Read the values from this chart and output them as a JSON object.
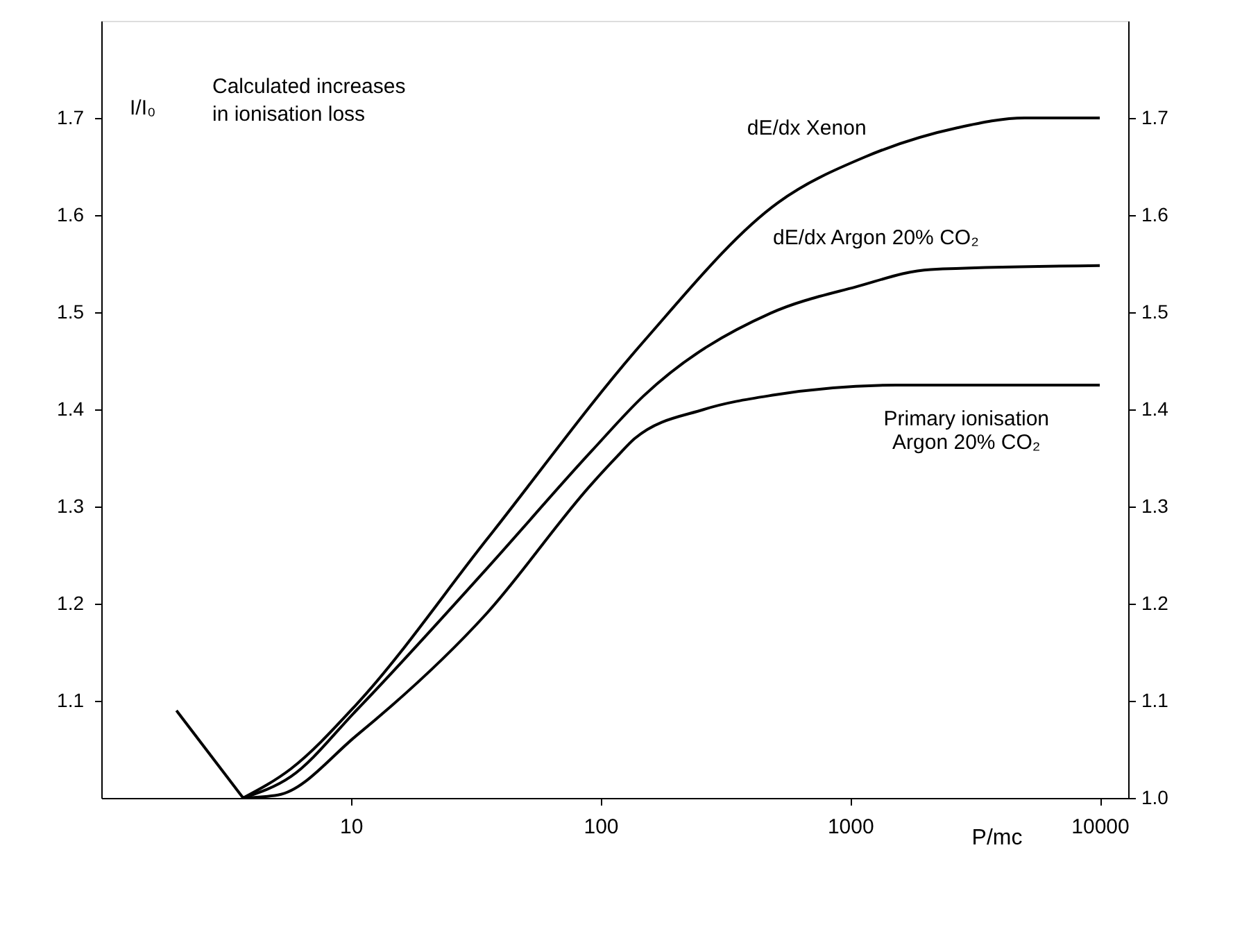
{
  "chart_data": {
    "type": "line",
    "xlabel": "P/mc",
    "ylabel": "I/I₀",
    "log": "x",
    "grid": false,
    "marker": "none",
    "line_style": "solid",
    "xlim": [
      1,
      13000
    ],
    "xticks": [
      10,
      100,
      1000,
      10000
    ],
    "ylim": [
      1.0,
      1.8
    ],
    "yticks": [
      1.1,
      1.2,
      1.3,
      1.4,
      1.5,
      1.6,
      1.7
    ],
    "y2lim": [
      1.0,
      1.8
    ],
    "y2ticks": [
      {
        "value": 1.0,
        "label": "1.0"
      },
      1.1,
      1.2,
      1.3,
      1.4,
      1.5,
      1.6,
      1.7
    ],
    "series": [
      {
        "color": "#000000",
        "x": [
          2.0,
          3.7
        ],
        "values": [
          1.09,
          1.0
        ]
      },
      {
        "color": "#000000",
        "x": [
          3.7,
          5.75,
          10.5,
          35,
          149,
          515,
          1150,
          2700,
          5000,
          10000
        ],
        "values": [
          1.0,
          1.03,
          1.096,
          1.266,
          1.47,
          1.613,
          1.66,
          1.69,
          1.7,
          1.7
        ]
      },
      {
        "color": "#000000",
        "x": [
          3.7,
          5.75,
          10.5,
          35,
          92,
          149,
          480,
          1050,
          2100,
          10000
        ],
        "values": [
          1.0,
          1.022,
          1.09,
          1.236,
          1.357,
          1.414,
          1.499,
          1.526,
          1.544,
          1.548
        ]
      },
      {
        "color": "#000000",
        "x": [
          3.7,
          5.1,
          10.5,
          35,
          92,
          117,
          137,
          260,
          500,
          1530,
          10000
        ],
        "values": [
          1.0,
          1.003,
          1.064,
          1.19,
          1.323,
          1.352,
          1.37,
          1.4,
          1.415,
          1.425,
          1.425
        ]
      }
    ],
    "annotations": [
      "Calculated increases\nin  ionisation loss",
      {
        "text": "dE/dx  Xenon",
        "x": 1500,
        "y": 1.67
      },
      {
        "text": "dE/dx  Argon  20% CO₂",
        "x": 760,
        "y": 1.52
      },
      {
        "text": "Primary ionisation\nArgon  20% CO₂",
        "x": 6300,
        "y": 1.425
      }
    ]
  }
}
